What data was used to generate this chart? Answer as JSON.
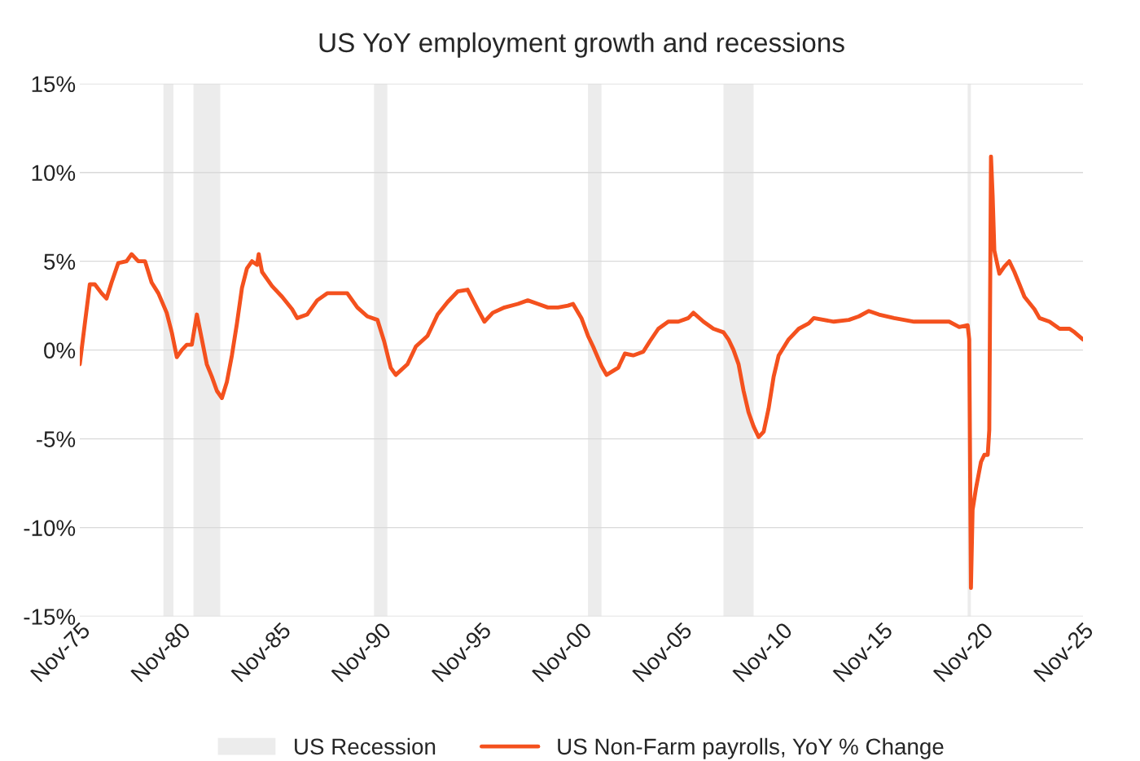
{
  "chart_data": {
    "type": "line",
    "title": "US YoY employment growth and recessions",
    "x": [
      "1975-11",
      "1976-02",
      "1976-05",
      "1976-08",
      "1976-12",
      "1977-03",
      "1977-06",
      "1977-10",
      "1978-03",
      "1978-06",
      "1978-10",
      "1979-02",
      "1979-06",
      "1979-10",
      "1980-03",
      "1980-06",
      "1980-09",
      "1980-12",
      "1981-03",
      "1981-06",
      "1981-09",
      "1981-12",
      "1982-03",
      "1982-06",
      "1982-09",
      "1982-12",
      "1983-03",
      "1983-06",
      "1983-09",
      "1983-12",
      "1984-03",
      "1984-06",
      "1984-09",
      "1984-10",
      "1984-12",
      "1985-06",
      "1985-12",
      "1986-06",
      "1986-09",
      "1987-03",
      "1987-09",
      "1988-03",
      "1988-09",
      "1989-03",
      "1989-09",
      "1990-03",
      "1990-09",
      "1991-01",
      "1991-05",
      "1991-08",
      "1992-03",
      "1992-08",
      "1993-03",
      "1993-09",
      "1994-03",
      "1994-09",
      "1995-03",
      "1995-09",
      "1996-01",
      "1996-06",
      "1997-01",
      "1997-09",
      "1998-03",
      "1998-09",
      "1999-03",
      "1999-09",
      "2000-03",
      "2000-06",
      "2000-11",
      "2001-03",
      "2001-06",
      "2001-11",
      "2002-02",
      "2002-09",
      "2003-01",
      "2003-06",
      "2003-12",
      "2004-04",
      "2004-09",
      "2005-03",
      "2005-09",
      "2006-03",
      "2006-06",
      "2006-12",
      "2007-06",
      "2007-12",
      "2008-03",
      "2008-06",
      "2008-09",
      "2008-12",
      "2009-03",
      "2009-06",
      "2009-09",
      "2009-12",
      "2010-03",
      "2010-06",
      "2010-09",
      "2011-03",
      "2011-09",
      "2012-03",
      "2012-06",
      "2013-06",
      "2014-03",
      "2014-09",
      "2015-03",
      "2015-09",
      "2016-06",
      "2017-06",
      "2018-03",
      "2018-09",
      "2019-03",
      "2019-09",
      "2020-02",
      "2020-03",
      "2020-04",
      "2020-05",
      "2020-07",
      "2020-10",
      "2020-12",
      "2021-02",
      "2021-03",
      "2021-04",
      "2021-05",
      "2021-06",
      "2021-09",
      "2021-12",
      "2022-03",
      "2022-06",
      "2022-09",
      "2022-12",
      "2023-06",
      "2023-09",
      "2024-03",
      "2024-09",
      "2025-03",
      "2025-06",
      "2025-11"
    ],
    "series": [
      {
        "name": "US Non-Farm payrolls, YoY % Change",
        "color": "#f4511e",
        "values": [
          -0.8,
          1.5,
          3.7,
          3.7,
          3.2,
          2.9,
          3.8,
          4.9,
          5.0,
          5.4,
          5.0,
          5.0,
          3.8,
          3.2,
          2.1,
          1.0,
          -0.4,
          0.0,
          0.3,
          0.3,
          2.0,
          0.6,
          -0.8,
          -1.5,
          -2.3,
          -2.7,
          -1.8,
          -0.3,
          1.5,
          3.5,
          4.6,
          5.0,
          4.8,
          5.4,
          4.4,
          3.6,
          3.0,
          2.3,
          1.8,
          2.0,
          2.8,
          3.2,
          3.2,
          3.2,
          2.4,
          1.9,
          1.7,
          0.5,
          -1.0,
          -1.4,
          -0.8,
          0.2,
          0.8,
          2.0,
          2.7,
          3.3,
          3.4,
          2.3,
          1.6,
          2.1,
          2.4,
          2.6,
          2.8,
          2.6,
          2.4,
          2.4,
          2.5,
          2.6,
          1.8,
          0.8,
          0.2,
          -0.9,
          -1.4,
          -1.0,
          -0.2,
          -0.3,
          -0.1,
          0.5,
          1.2,
          1.6,
          1.6,
          1.8,
          2.1,
          1.6,
          1.2,
          1.0,
          0.6,
          0.0,
          -0.8,
          -2.3,
          -3.5,
          -4.3,
          -4.9,
          -4.6,
          -3.3,
          -1.5,
          -0.3,
          0.6,
          1.2,
          1.5,
          1.8,
          1.6,
          1.7,
          1.9,
          2.2,
          2.0,
          1.8,
          1.6,
          1.6,
          1.6,
          1.6,
          1.3,
          1.4,
          0.6,
          -13.4,
          -9.0,
          -7.8,
          -6.3,
          -5.9,
          -5.9,
          -4.5,
          10.9,
          8.7,
          5.6,
          4.3,
          4.7,
          5.0,
          4.4,
          3.7,
          3.0,
          2.3,
          1.8,
          1.6,
          1.2,
          1.2,
          1.0,
          0.6
        ]
      }
    ],
    "bands": [
      {
        "axis": "x",
        "from": "1980-01",
        "to": "1980-07",
        "label": "US Recession",
        "color": "#ececec"
      },
      {
        "axis": "x",
        "from": "1981-07",
        "to": "1982-11",
        "color": "#ececec"
      },
      {
        "axis": "x",
        "from": "1990-07",
        "to": "1991-03",
        "color": "#ececec"
      },
      {
        "axis": "x",
        "from": "2001-03",
        "to": "2001-11",
        "color": "#ececec"
      },
      {
        "axis": "x",
        "from": "2007-12",
        "to": "2009-06",
        "color": "#ececec"
      },
      {
        "axis": "x",
        "from": "2020-02",
        "to": "2020-04",
        "color": "#ececec"
      }
    ],
    "xlim": [
      "1975-11",
      "2025-11"
    ],
    "xticks": [
      {
        "value": "1975-11",
        "label": "Nov-75"
      },
      {
        "value": "1980-11",
        "label": "Nov-80"
      },
      {
        "value": "1985-11",
        "label": "Nov-85"
      },
      {
        "value": "1990-11",
        "label": "Nov-90"
      },
      {
        "value": "1995-11",
        "label": "Nov-95"
      },
      {
        "value": "2000-11",
        "label": "Nov-00"
      },
      {
        "value": "2005-11",
        "label": "Nov-05"
      },
      {
        "value": "2010-11",
        "label": "Nov-10"
      },
      {
        "value": "2015-11",
        "label": "Nov-15"
      },
      {
        "value": "2020-11",
        "label": "Nov-20"
      },
      {
        "value": "2025-11",
        "label": "Nov-25"
      }
    ],
    "ylim": [
      -15,
      15
    ],
    "yticks": [
      {
        "value": -15,
        "label": "-15%"
      },
      {
        "value": -10,
        "label": "-10%"
      },
      {
        "value": -5,
        "label": "-5%"
      },
      {
        "value": 0,
        "label": "0%"
      },
      {
        "value": 5,
        "label": "5%"
      },
      {
        "value": 10,
        "label": "10%"
      },
      {
        "value": 15,
        "label": "15%"
      }
    ],
    "grid": "y",
    "legend": "bottom",
    "marker": "none",
    "line_style": "solid"
  }
}
